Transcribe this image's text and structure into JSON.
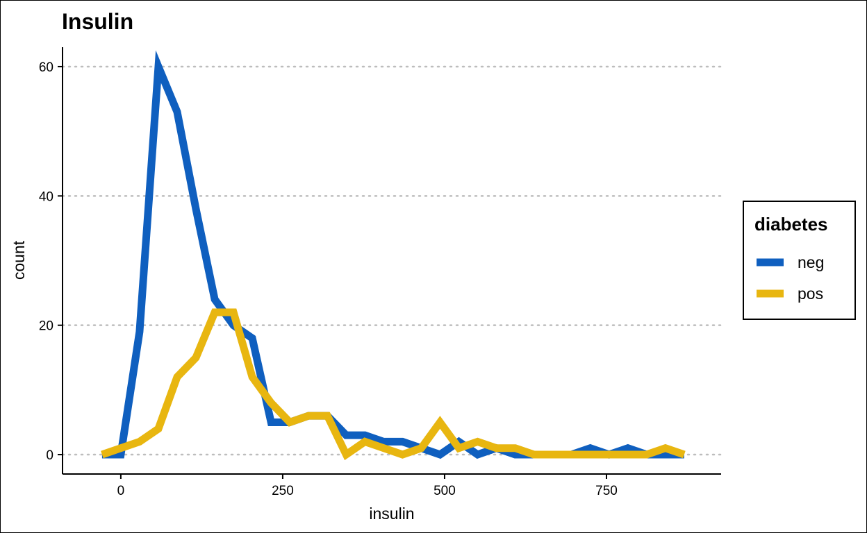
{
  "chart_data": {
    "type": "line",
    "title": "Insulin",
    "xlabel": "insulin",
    "ylabel": "count",
    "xlim": [
      -90,
      927
    ],
    "ylim": [
      -3,
      63
    ],
    "x_ticks": [
      {
        "value": 0,
        "label": "0"
      },
      {
        "value": 250,
        "label": "250"
      },
      {
        "value": 500,
        "label": "500"
      },
      {
        "value": 750,
        "label": "750"
      }
    ],
    "y_ticks": [
      {
        "value": 0,
        "label": "0"
      },
      {
        "value": 20,
        "label": "20"
      },
      {
        "value": 40,
        "label": "40"
      },
      {
        "value": 60,
        "label": "60"
      }
    ],
    "grid": "horizontal dotted",
    "legend": {
      "title": "diabetes",
      "position": "right"
    },
    "x": [
      -29,
      0,
      29,
      58,
      87,
      116,
      145,
      174,
      203,
      232,
      261,
      290,
      319,
      348,
      377,
      406,
      435,
      464,
      493,
      522,
      551,
      580,
      609,
      638,
      667,
      696,
      725,
      754,
      783,
      812,
      841,
      870
    ],
    "series": [
      {
        "name": "neg",
        "color": "#0F5FBF",
        "values": [
          0,
          0,
          19,
          60,
          53,
          38,
          24,
          20,
          18,
          5,
          5,
          6,
          6,
          3,
          3,
          2,
          2,
          1,
          0,
          2,
          0,
          1,
          0,
          0,
          0,
          0,
          1,
          0,
          1,
          0,
          0,
          0
        ]
      },
      {
        "name": "pos",
        "color": "#E8B610",
        "values": [
          0,
          1,
          2,
          4,
          12,
          15,
          22,
          22,
          12,
          8,
          5,
          6,
          6,
          0,
          2,
          1,
          0,
          1,
          5,
          1,
          2,
          1,
          1,
          0,
          0,
          0,
          0,
          0,
          0,
          0,
          1,
          0
        ]
      }
    ]
  }
}
